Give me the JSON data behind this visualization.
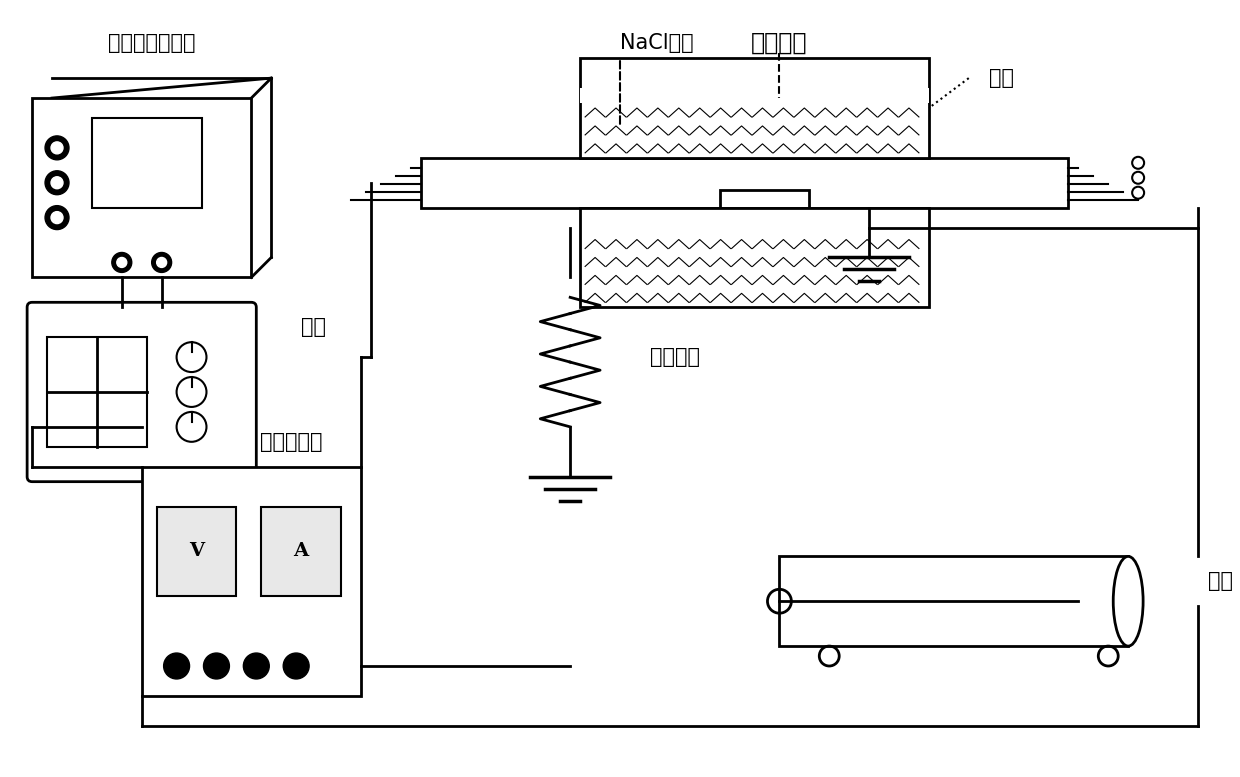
{
  "title": "",
  "bg_color": "#ffffff",
  "line_color": "#000000",
  "labels": {
    "func_gen": "函数信号发生器",
    "nacl": "NaCl溶液",
    "aging": "老化区域",
    "container": "容器",
    "power_amp": "功放",
    "safety_box": "安全控制箱",
    "inductor": "并联电感",
    "water_res": "水阻"
  },
  "figsize": [
    12.4,
    7.77
  ],
  "dpi": 100
}
